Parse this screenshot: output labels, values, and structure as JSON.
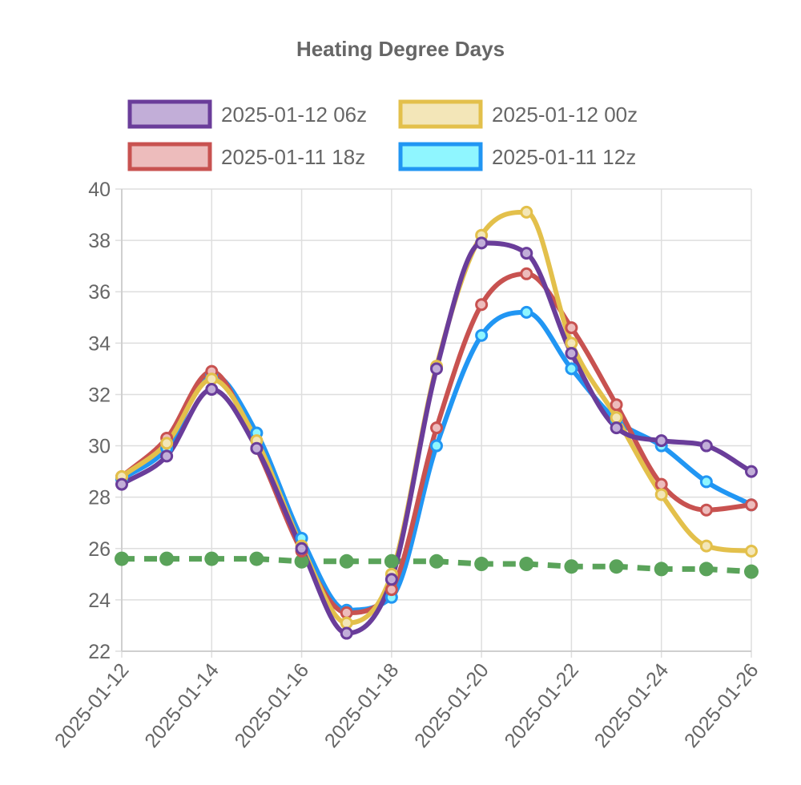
{
  "chart_data": {
    "type": "line",
    "title": "Heating Degree Days",
    "xlabel": "",
    "ylabel": "",
    "x": [
      "2025-01-12",
      "2025-01-13",
      "2025-01-14",
      "2025-01-15",
      "2025-01-16",
      "2025-01-17",
      "2025-01-18",
      "2025-01-19",
      "2025-01-20",
      "2025-01-21",
      "2025-01-22",
      "2025-01-23",
      "2025-01-24",
      "2025-01-25",
      "2025-01-26"
    ],
    "x_tick_labels": [
      "2025-01-12",
      "2025-01-14",
      "2025-01-16",
      "2025-01-18",
      "2025-01-20",
      "2025-01-22",
      "2025-01-24",
      "2025-01-26"
    ],
    "ylim": [
      22,
      40
    ],
    "y_ticks": [
      "22",
      "24",
      "26",
      "28",
      "30",
      "32",
      "34",
      "36",
      "38",
      "40"
    ],
    "grid": true,
    "legend_position": "top",
    "series": [
      {
        "name": "2025-01-12 06z",
        "color": "#6a3d9a",
        "fill": "#c2aed8",
        "values": [
          28.5,
          29.6,
          32.2,
          29.9,
          26.0,
          22.7,
          24.8,
          33.0,
          37.9,
          37.5,
          33.6,
          30.7,
          30.2,
          30.0,
          29.0
        ]
      },
      {
        "name": "2025-01-12 00z",
        "color": "#e3c04b",
        "fill": "#f3e6b8",
        "values": [
          28.8,
          30.1,
          32.6,
          30.2,
          26.1,
          23.1,
          25.0,
          33.1,
          38.2,
          39.1,
          34.0,
          31.1,
          28.1,
          26.1,
          25.9
        ]
      },
      {
        "name": "2025-01-11 18z",
        "color": "#c85250",
        "fill": "#edbcbc",
        "values": [
          28.8,
          30.3,
          32.9,
          29.9,
          25.9,
          23.5,
          24.4,
          30.7,
          35.5,
          36.7,
          34.6,
          31.6,
          28.5,
          27.5,
          27.7
        ]
      },
      {
        "name": "2025-01-11 12z",
        "color": "#2196f3",
        "fill": "#8ff6ff",
        "values": [
          28.7,
          29.9,
          32.8,
          30.5,
          26.4,
          23.6,
          24.1,
          30.0,
          34.3,
          35.2,
          33.0,
          31.0,
          30.0,
          28.6,
          27.7
        ]
      },
      {
        "name": "",
        "color": "#5aa35a",
        "dashed": true,
        "values": [
          25.6,
          25.6,
          25.6,
          25.6,
          25.5,
          25.5,
          25.5,
          25.5,
          25.4,
          25.4,
          25.3,
          25.3,
          25.2,
          25.2,
          25.1
        ]
      }
    ]
  }
}
